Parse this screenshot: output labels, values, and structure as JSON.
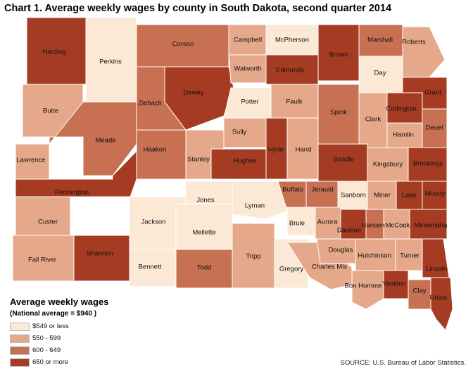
{
  "title": "Chart 1. Average weekly wages by county in South Dakota, second quarter 2014",
  "legend": {
    "title": "Average weekly wages",
    "subtitle": "(National average = $940 )",
    "items": [
      {
        "label": "$549 or less",
        "color": "#fbe9d5"
      },
      {
        "label": "550 - 599",
        "color": "#e5a88a"
      },
      {
        "label": "600 - 649",
        "color": "#c87052"
      },
      {
        "label": "650 or more",
        "color": "#a53b22"
      }
    ]
  },
  "source": "SOURCE: U.S. Bureau of Labor Statistics.",
  "counties": [
    {
      "name": "Harding",
      "tier": 3
    },
    {
      "name": "Perkins",
      "tier": 0
    },
    {
      "name": "Corson",
      "tier": 2
    },
    {
      "name": "Campbell",
      "tier": 1
    },
    {
      "name": "McPherson",
      "tier": 0
    },
    {
      "name": "Brown",
      "tier": 3
    },
    {
      "name": "Marshall",
      "tier": 2
    },
    {
      "name": "Roberts",
      "tier": 1
    },
    {
      "name": "Butte",
      "tier": 1
    },
    {
      "name": "Ziebach",
      "tier": 2
    },
    {
      "name": "Dewey",
      "tier": 3
    },
    {
      "name": "Walworth",
      "tier": 1
    },
    {
      "name": "Edmunds",
      "tier": 3
    },
    {
      "name": "Day",
      "tier": 0
    },
    {
      "name": "Potter",
      "tier": 0
    },
    {
      "name": "Faulk",
      "tier": 1
    },
    {
      "name": "Spink",
      "tier": 2
    },
    {
      "name": "Clark",
      "tier": 1
    },
    {
      "name": "Codington",
      "tier": 3
    },
    {
      "name": "Grant",
      "tier": 3
    },
    {
      "name": "Meade",
      "tier": 2
    },
    {
      "name": "Sully",
      "tier": 1
    },
    {
      "name": "Hamlin",
      "tier": 1
    },
    {
      "name": "Deuel",
      "tier": 2
    },
    {
      "name": "Lawrence",
      "tier": 1
    },
    {
      "name": "Stanley",
      "tier": 1
    },
    {
      "name": "Hughes",
      "tier": 3
    },
    {
      "name": "Hyde",
      "tier": 3
    },
    {
      "name": "Hand",
      "tier": 1
    },
    {
      "name": "Beadle",
      "tier": 3
    },
    {
      "name": "Kingsbury",
      "tier": 1
    },
    {
      "name": "Brookings",
      "tier": 3
    },
    {
      "name": "Haakon",
      "tier": 2
    },
    {
      "name": "Pennington",
      "tier": 3
    },
    {
      "name": "Buffalo",
      "tier": 2
    },
    {
      "name": "Jerauld",
      "tier": 2
    },
    {
      "name": "Sanborn",
      "tier": 0
    },
    {
      "name": "Miner",
      "tier": 1
    },
    {
      "name": "Lake",
      "tier": 3
    },
    {
      "name": "Moody",
      "tier": 3
    },
    {
      "name": "Jones",
      "tier": 0
    },
    {
      "name": "Lyman",
      "tier": 0
    },
    {
      "name": "Custer",
      "tier": 1
    },
    {
      "name": "Jackson",
      "tier": 0
    },
    {
      "name": "Brule",
      "tier": 0
    },
    {
      "name": "Aurora",
      "tier": 1
    },
    {
      "name": "Davison",
      "tier": 3
    },
    {
      "name": "Hanson",
      "tier": 2
    },
    {
      "name": "McCook",
      "tier": 1
    },
    {
      "name": "Minnehaha",
      "tier": 3
    },
    {
      "name": "Mellette",
      "tier": 0
    },
    {
      "name": "Fall River",
      "tier": 1
    },
    {
      "name": "Shannon",
      "tier": 3
    },
    {
      "name": "Bennett",
      "tier": 0
    },
    {
      "name": "Todd",
      "tier": 2
    },
    {
      "name": "Tripp",
      "tier": 1
    },
    {
      "name": "Gregory",
      "tier": 0
    },
    {
      "name": "Charles Mix",
      "tier": 1
    },
    {
      "name": "Douglas",
      "tier": 1
    },
    {
      "name": "Hutchinson",
      "tier": 1
    },
    {
      "name": "Turner",
      "tier": 1
    },
    {
      "name": "Lincoln",
      "tier": 3
    },
    {
      "name": "Bon Homme",
      "tier": 1
    },
    {
      "name": "Yankton",
      "tier": 3
    },
    {
      "name": "Clay",
      "tier": 2
    },
    {
      "name": "Union",
      "tier": 3
    }
  ]
}
